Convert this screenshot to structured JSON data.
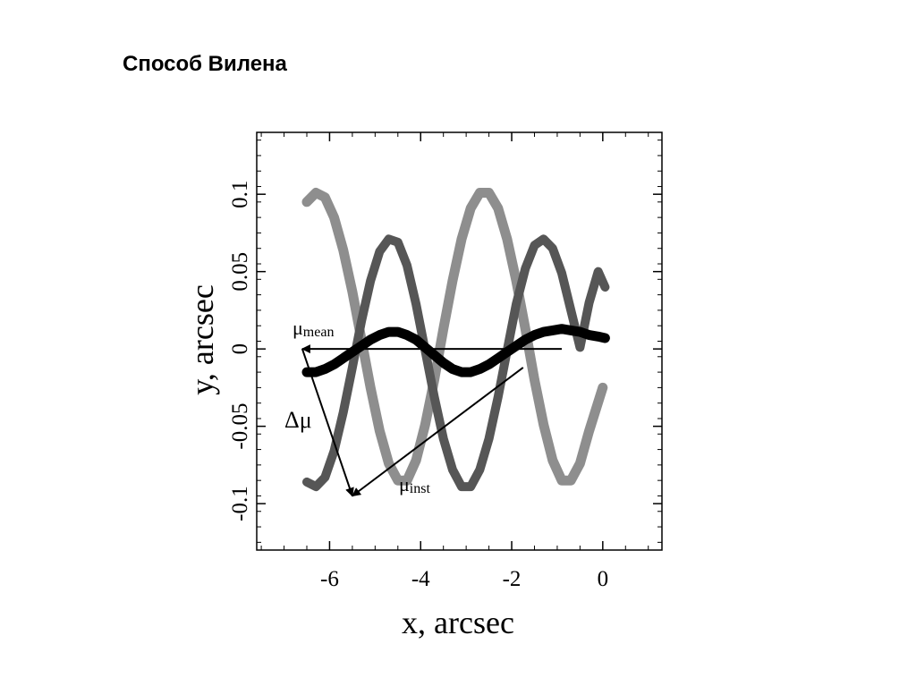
{
  "slide": {
    "title": "Способ Вилена"
  },
  "chart_data": {
    "type": "line",
    "xlabel": "x, arcsec",
    "ylabel": "y, arcsec",
    "xlim": [
      -7.6,
      1.3
    ],
    "ylim": [
      -0.13,
      0.14
    ],
    "x_ticks": [
      -6,
      -4,
      -2,
      0
    ],
    "x_tick_labels": [
      "-6",
      "-4",
      "-2",
      "0"
    ],
    "y_ticks": [
      -0.1,
      -0.05,
      0,
      0.05,
      0.1
    ],
    "y_tick_labels": [
      "-0.1",
      "-0.05",
      "0",
      "0.05",
      "0.1"
    ],
    "grid": false,
    "series": [
      {
        "color": "#8e8e8e",
        "x": [
          -6.5,
          -6.3,
          -6.1,
          -5.9,
          -5.7,
          -5.5,
          -5.3,
          -5.1,
          -4.9,
          -4.7,
          -4.5,
          -4.3,
          -4.1,
          -3.9,
          -3.7,
          -3.5,
          -3.3,
          -3.1,
          -2.9,
          -2.7,
          -2.5,
          -2.3,
          -2.1,
          -1.9,
          -1.7,
          -1.5,
          -1.3,
          -1.1,
          -0.9,
          -0.7,
          -0.5,
          -0.3,
          0.0
        ],
        "y": [
          0.095,
          0.101,
          0.098,
          0.085,
          0.064,
          0.037,
          0.006,
          -0.025,
          -0.053,
          -0.074,
          -0.085,
          -0.085,
          -0.072,
          -0.049,
          -0.02,
          0.013,
          0.044,
          0.071,
          0.091,
          0.101,
          0.101,
          0.091,
          0.071,
          0.044,
          0.013,
          -0.02,
          -0.049,
          -0.072,
          -0.085,
          -0.085,
          -0.074,
          -0.053,
          -0.025
        ]
      },
      {
        "color": "#565656",
        "x": [
          -6.5,
          -6.3,
          -6.1,
          -5.9,
          -5.7,
          -5.5,
          -5.3,
          -5.1,
          -4.9,
          -4.7,
          -4.5,
          -4.3,
          -4.1,
          -3.9,
          -3.7,
          -3.5,
          -3.3,
          -3.1,
          -2.9,
          -2.7,
          -2.5,
          -2.3,
          -2.1,
          -1.9,
          -1.7,
          -1.5,
          -1.3,
          -1.1,
          -0.9,
          -0.7,
          -0.5,
          -0.3,
          -0.1,
          0.05
        ],
        "y": [
          -0.086,
          -0.089,
          -0.083,
          -0.066,
          -0.041,
          -0.012,
          0.018,
          0.044,
          0.063,
          0.071,
          0.069,
          0.054,
          0.029,
          -0.001,
          -0.031,
          -0.058,
          -0.078,
          -0.089,
          -0.089,
          -0.078,
          -0.058,
          -0.031,
          -0.001,
          0.029,
          0.052,
          0.067,
          0.071,
          0.065,
          0.049,
          0.025,
          0.001,
          0.03,
          0.05,
          0.04
        ]
      },
      {
        "color": "#000000",
        "x": [
          -6.5,
          -6.3,
          -6.1,
          -5.9,
          -5.7,
          -5.5,
          -5.3,
          -5.1,
          -4.9,
          -4.7,
          -4.5,
          -4.3,
          -4.1,
          -3.9,
          -3.7,
          -3.5,
          -3.3,
          -3.1,
          -2.9,
          -2.7,
          -2.5,
          -2.3,
          -2.1,
          -1.9,
          -1.7,
          -1.5,
          -1.3,
          -1.1,
          -0.9,
          -0.7,
          -0.5,
          -0.3,
          -0.1,
          0.05
        ],
        "y": [
          -0.015,
          -0.015,
          -0.013,
          -0.01,
          -0.006,
          -0.002,
          0.002,
          0.006,
          0.009,
          0.011,
          0.011,
          0.009,
          0.006,
          0.001,
          -0.004,
          -0.009,
          -0.013,
          -0.015,
          -0.015,
          -0.013,
          -0.01,
          -0.006,
          -0.002,
          0.002,
          0.006,
          0.009,
          0.011,
          0.012,
          0.013,
          0.012,
          0.011,
          0.009,
          0.008,
          0.007
        ]
      }
    ],
    "annotations": {
      "mu_mean": {
        "symbol": "μ",
        "subscript": "mean"
      },
      "delta_mu": {
        "text": "Δμ"
      },
      "mu_inst": {
        "symbol": "μ",
        "subscript": "inst"
      }
    },
    "vectors": [
      {
        "name": "mu_mean",
        "from": [
          -0.9,
          0.0
        ],
        "to": [
          -6.6,
          0.0
        ]
      },
      {
        "name": "mu_inst",
        "from": [
          -1.75,
          -0.012
        ],
        "to": [
          -5.5,
          -0.095
        ]
      },
      {
        "name": "delta_mu",
        "from": [
          -6.6,
          0.0
        ],
        "to": [
          -5.5,
          -0.095
        ]
      }
    ]
  }
}
